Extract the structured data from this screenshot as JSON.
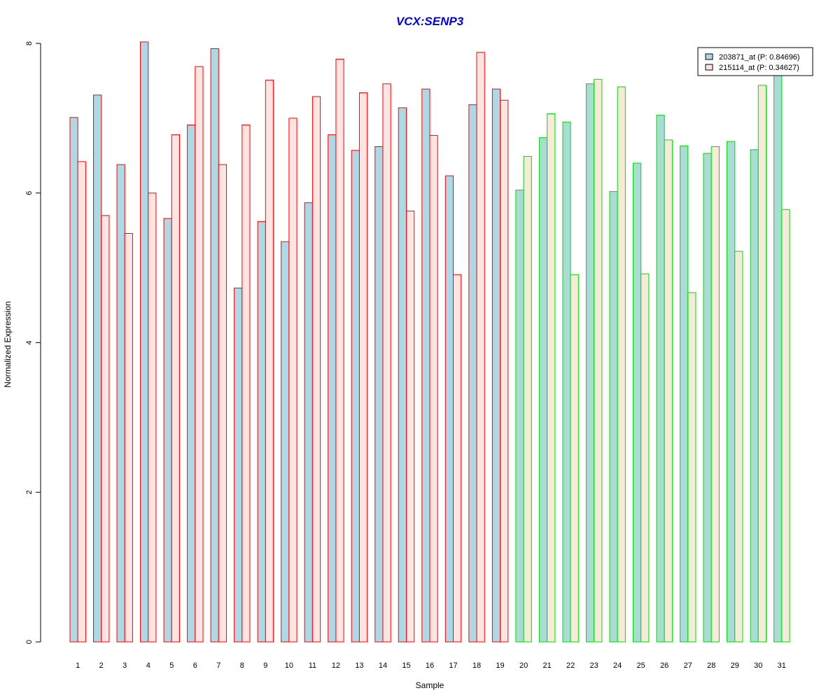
{
  "chart_data": {
    "type": "bar",
    "title": "VCX:SENP3",
    "xlabel": "Sample",
    "ylabel": "Normalized Expression",
    "ylim": [
      0,
      8
    ],
    "yticks": [
      "0",
      "2",
      "4",
      "6",
      "8"
    ],
    "categories": [
      "1",
      "2",
      "3",
      "4",
      "5",
      "6",
      "7",
      "8",
      "9",
      "10",
      "11",
      "12",
      "13",
      "14",
      "15",
      "16",
      "17",
      "18",
      "19",
      "20",
      "21",
      "22",
      "23",
      "24",
      "25",
      "26",
      "27",
      "28",
      "29",
      "30",
      "31"
    ],
    "group": [
      "red",
      "red",
      "red",
      "red",
      "red",
      "red",
      "red",
      "red",
      "red",
      "red",
      "red",
      "red",
      "red",
      "red",
      "red",
      "red",
      "red",
      "red",
      "red",
      "green",
      "green",
      "green",
      "green",
      "green",
      "green",
      "green",
      "green",
      "green",
      "green",
      "green",
      "green"
    ],
    "series": [
      {
        "name": "203871_at (P: 0.84696)",
        "values": [
          7.01,
          7.31,
          6.38,
          8.02,
          5.66,
          6.91,
          7.93,
          4.73,
          5.62,
          5.35,
          5.87,
          6.78,
          6.57,
          6.62,
          7.14,
          7.39,
          6.23,
          7.18,
          7.39,
          6.04,
          6.74,
          6.95,
          7.46,
          6.02,
          6.4,
          7.04,
          6.63,
          6.53,
          6.69,
          6.58,
          7.57
        ]
      },
      {
        "name": "215114_at (P: 0.34627)",
        "values": [
          6.42,
          5.7,
          5.46,
          6.0,
          6.78,
          7.69,
          6.38,
          6.91,
          7.51,
          7.0,
          7.29,
          7.79,
          7.34,
          7.46,
          5.76,
          6.77,
          4.91,
          7.88,
          7.24,
          6.49,
          7.06,
          4.91,
          7.52,
          7.42,
          4.92,
          6.71,
          4.67,
          6.62,
          5.22,
          7.44,
          5.78
        ]
      }
    ],
    "colors": {
      "fill_series1_red": "#add8e6",
      "fill_series2_red": "#ffe4e1",
      "fill_series1_green": "#a8dcd5",
      "fill_series2_green": "#f5ebd9",
      "border_red": "#ff0000",
      "border_green": "#00dd00",
      "legend_swatch_1": "#add8e6",
      "legend_swatch_2": "#ffe4e1"
    },
    "legend_position": "top-right",
    "grid": false
  }
}
